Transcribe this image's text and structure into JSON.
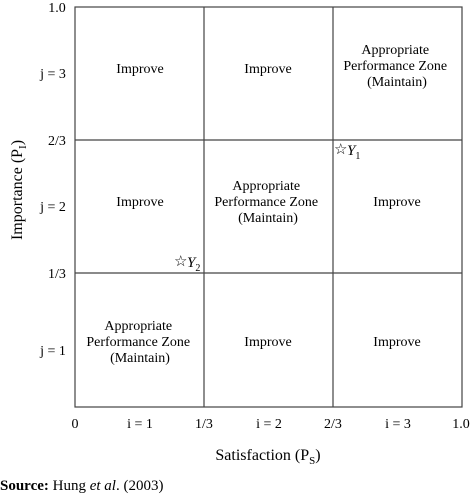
{
  "x_axis": {
    "title": "Satisfaction (P",
    "title_sub": "S",
    "title_close": ")",
    "ticks": [
      "0",
      "1/3",
      "2/3",
      "1.0"
    ],
    "bands": [
      "i = 1",
      "i = 2",
      "i = 3"
    ]
  },
  "y_axis": {
    "title": "Importance (P",
    "title_sub": "I",
    "title_close": ")",
    "ticks": [
      "1.0",
      "2/3",
      "1/3"
    ],
    "bands": [
      "j = 3",
      "j = 2",
      "j = 1"
    ]
  },
  "cells": {
    "r3c1": [
      "Improve"
    ],
    "r3c2": [
      "Improve"
    ],
    "r3c3": [
      "Appropriate",
      "Performance Zone",
      "(Maintain)"
    ],
    "r2c1": [
      "Improve"
    ],
    "r2c2": [
      "Appropriate",
      "Performance Zone",
      "(Maintain)"
    ],
    "r2c3": [
      "Improve"
    ],
    "r1c1": [
      "Appropriate",
      "Performance Zone",
      "(Maintain)"
    ],
    "r1c2": [
      "Improve"
    ],
    "r1c3": [
      "Improve"
    ]
  },
  "points": [
    {
      "symbol": "☆",
      "letter": "Y",
      "sub": "1"
    },
    {
      "symbol": "☆",
      "letter": "Y",
      "sub": "2"
    }
  ],
  "source": {
    "label": "Source:",
    "author": "Hung",
    "etal": "et al",
    "year": ". (2003)"
  }
}
